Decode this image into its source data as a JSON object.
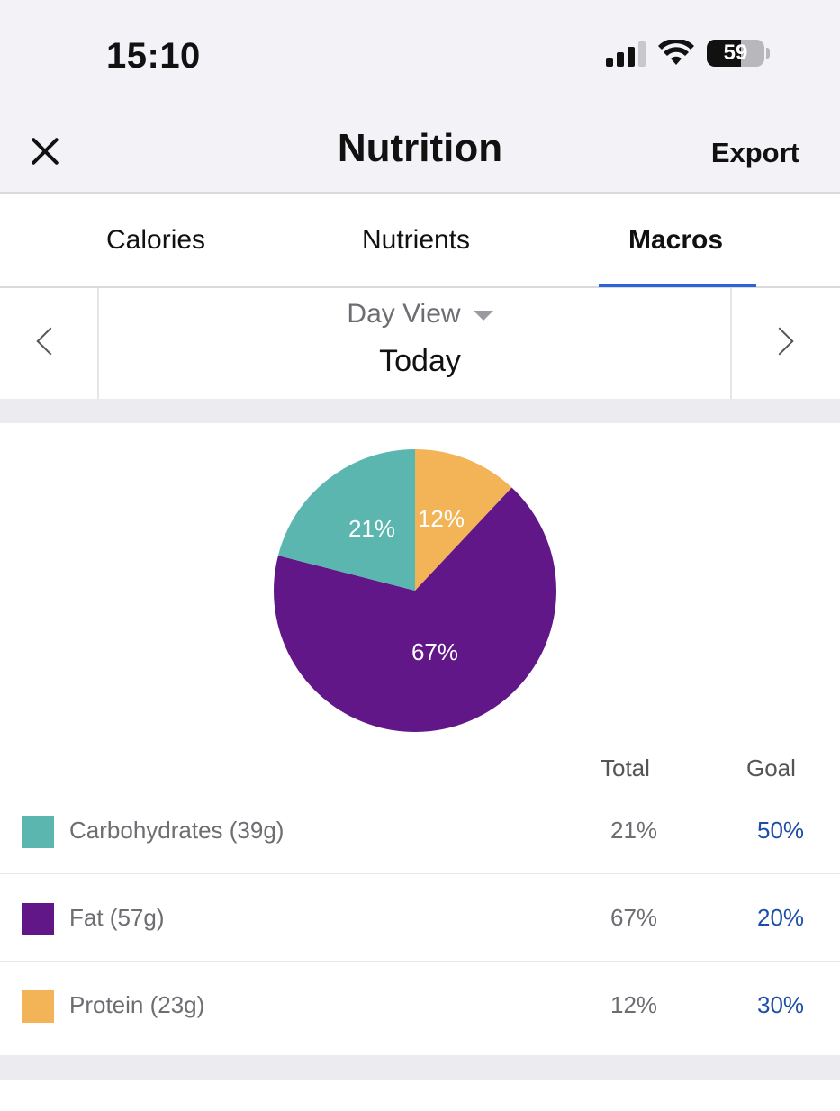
{
  "status_bar": {
    "time": "15:10",
    "battery": "59"
  },
  "header": {
    "title": "Nutrition",
    "export_label": "Export"
  },
  "tabs": [
    {
      "label": "Calories"
    },
    {
      "label": "Nutrients"
    },
    {
      "label": "Macros",
      "active": true
    }
  ],
  "date_nav": {
    "view_label": "Day View",
    "date_label": "Today"
  },
  "table": {
    "total_header": "Total",
    "goal_header": "Goal"
  },
  "macros": [
    {
      "name": "Carbohydrates (39g)",
      "total": "21%",
      "goal": "50%",
      "color": "#5bb6b0"
    },
    {
      "name": "Fat (57g)",
      "total": "67%",
      "goal": "20%",
      "color": "#611788"
    },
    {
      "name": "Protein (23g)",
      "total": "12%",
      "goal": "30%",
      "color": "#f2b456"
    }
  ],
  "colors": {
    "accent": "#2a64d6",
    "goal_text": "#1e4fa8"
  },
  "chart_data": {
    "type": "pie",
    "categories": [
      "Protein",
      "Fat",
      "Carbohydrates"
    ],
    "values": [
      12,
      67,
      21
    ],
    "labels": [
      "12%",
      "67%",
      "21%"
    ],
    "colors": [
      "#f2b456",
      "#611788",
      "#5bb6b0"
    ]
  }
}
